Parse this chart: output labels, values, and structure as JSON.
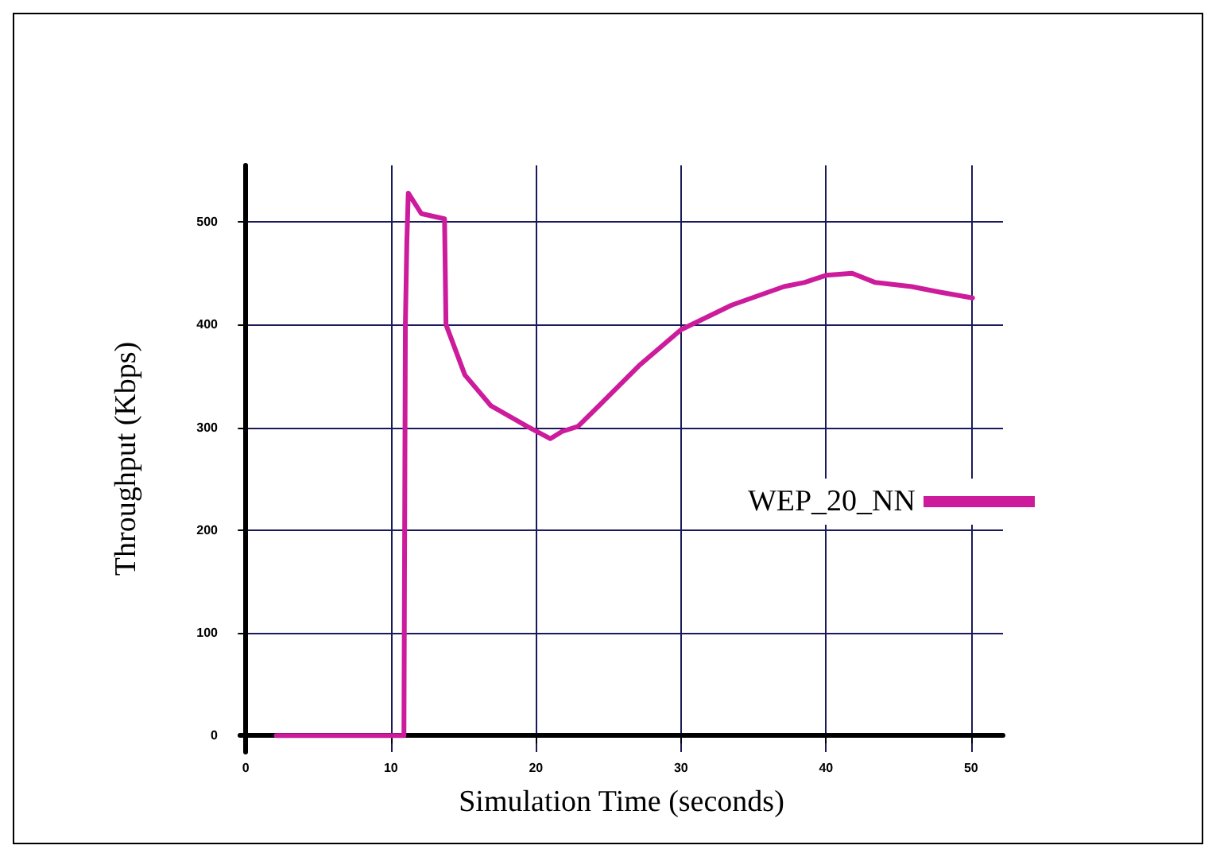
{
  "chart_data": {
    "type": "line",
    "xlabel": "Simulation Time (seconds)",
    "ylabel": "Throughput (Kbps)",
    "xlim": [
      -0.4,
      52.2
    ],
    "xticks": [
      0,
      10,
      20,
      30,
      40,
      50
    ],
    "ylim": [
      -16,
      555
    ],
    "yticks": [
      0,
      100,
      200,
      300,
      400,
      500
    ],
    "grid": true,
    "legend": "right",
    "marker": "none",
    "line_style": "solid",
    "series": [
      {
        "name": "WEP_20_NN",
        "color": "#cc1c9c",
        "x": [
          2.1,
          10.9,
          11.0,
          11.1,
          11.2,
          12.1,
          13.7,
          13.8,
          15.1,
          16.9,
          19.4,
          21.0,
          21.8,
          22.9,
          24.7,
          27.1,
          30.0,
          33.5,
          37.1,
          38.5,
          40.0,
          41.8,
          43.4,
          45.9,
          47.7,
          50.1
        ],
        "values": [
          0,
          0,
          400,
          480,
          528,
          508,
          503,
          400,
          351,
          321,
          301,
          289,
          296,
          301,
          326,
          360,
          395,
          419,
          437,
          441,
          448,
          450,
          441,
          437,
          432,
          426
        ]
      }
    ]
  }
}
